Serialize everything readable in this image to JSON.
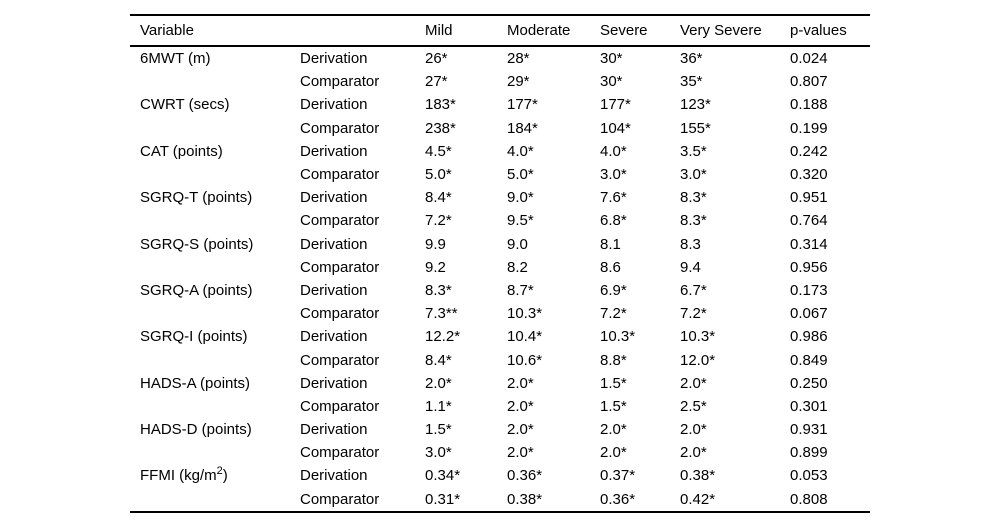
{
  "colors": {
    "background": "#ffffff",
    "text": "#000000",
    "rule": "#000000"
  },
  "table": {
    "headers": [
      "Variable",
      "",
      "Mild",
      "Moderate",
      "Severe",
      "Very Severe",
      "p-values"
    ],
    "rows": [
      {
        "variable": "6MWT (m)",
        "group": "Derivation",
        "values": [
          "26*",
          "28*",
          "30*",
          "36*"
        ],
        "p_value": "0.024"
      },
      {
        "variable": "",
        "group": "Comparator",
        "values": [
          "27*",
          "29*",
          "30*",
          "35*"
        ],
        "p_value": "0.807"
      },
      {
        "variable": "CWRT (secs)",
        "group": "Derivation",
        "values": [
          "183*",
          "177*",
          "177*",
          "123*"
        ],
        "p_value": "0.188"
      },
      {
        "variable": "",
        "group": "Comparator",
        "values": [
          "238*",
          "184*",
          "104*",
          "155*"
        ],
        "p_value": "0.199"
      },
      {
        "variable": "CAT (points)",
        "group": "Derivation",
        "values": [
          "4.5*",
          "4.0*",
          "4.0*",
          "3.5*"
        ],
        "p_value": "0.242"
      },
      {
        "variable": "",
        "group": "Comparator",
        "values": [
          "5.0*",
          "5.0*",
          "3.0*",
          "3.0*"
        ],
        "p_value": "0.320"
      },
      {
        "variable": "SGRQ-T (points)",
        "group": "Derivation",
        "values": [
          "8.4*",
          "9.0*",
          "7.6*",
          "8.3*"
        ],
        "p_value": "0.951"
      },
      {
        "variable": "",
        "group": "Comparator",
        "values": [
          "7.2*",
          "9.5*",
          "6.8*",
          "8.3*"
        ],
        "p_value": "0.764"
      },
      {
        "variable": "SGRQ-S (points)",
        "group": "Derivation",
        "values": [
          "9.9",
          "9.0",
          "8.1",
          "8.3"
        ],
        "p_value": "0.314"
      },
      {
        "variable": "",
        "group": "Comparator",
        "values": [
          "9.2",
          "8.2",
          "8.6",
          "9.4"
        ],
        "p_value": "0.956"
      },
      {
        "variable": "SGRQ-A (points)",
        "group": "Derivation",
        "values": [
          "8.3*",
          "8.7*",
          "6.9*",
          "6.7*"
        ],
        "p_value": "0.173"
      },
      {
        "variable": "",
        "group": "Comparator",
        "values": [
          "7.3**",
          "10.3*",
          "7.2*",
          "7.2*"
        ],
        "p_value": "0.067"
      },
      {
        "variable": "SGRQ-I (points)",
        "group": "Derivation",
        "values": [
          "12.2*",
          "10.4*",
          "10.3*",
          "10.3*"
        ],
        "p_value": "0.986"
      },
      {
        "variable": "",
        "group": "Comparator",
        "values": [
          "8.4*",
          "10.6*",
          "8.8*",
          "12.0*"
        ],
        "p_value": "0.849"
      },
      {
        "variable": "HADS-A (points)",
        "group": "Derivation",
        "values": [
          "2.0*",
          "2.0*",
          "1.5*",
          "2.0*"
        ],
        "p_value": "0.250"
      },
      {
        "variable": "",
        "group": "Comparator",
        "values": [
          "1.1*",
          "2.0*",
          "1.5*",
          "2.5*"
        ],
        "p_value": "0.301"
      },
      {
        "variable": "HADS-D (points)",
        "group": "Derivation",
        "values": [
          "1.5*",
          "2.0*",
          "2.0*",
          "2.0*"
        ],
        "p_value": "0.931"
      },
      {
        "variable": "",
        "group": "Comparator",
        "values": [
          "3.0*",
          "2.0*",
          "2.0*",
          "2.0*"
        ],
        "p_value": "0.899"
      },
      {
        "variable": "FFMI (kg/m",
        "variable_sup": "2",
        "variable_after": ")",
        "group": "Derivation",
        "values": [
          "0.34*",
          "0.36*",
          "0.37*",
          "0.38*"
        ],
        "p_value": "0.053"
      },
      {
        "variable": "",
        "group": "Comparator",
        "values": [
          "0.31*",
          "0.38*",
          "0.36*",
          "0.42*"
        ],
        "p_value": "0.808"
      }
    ]
  }
}
